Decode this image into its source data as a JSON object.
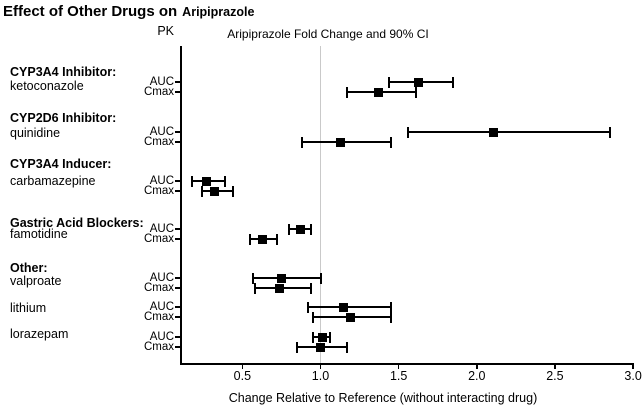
{
  "title_parts": {
    "prefix": "Effect of Other Drugs on",
    "drug": "Aripiprazole"
  },
  "column_headers": {
    "pk": "PK",
    "plot": "Aripiprazole Fold Change and 90% CI"
  },
  "chart_data": {
    "type": "forest",
    "title": "Aripiprazole Fold Change and 90% CI",
    "xlabel": "Change Relative to Reference (without interacting drug)",
    "xlim": [
      0.1,
      3.05
    ],
    "xticks": [
      "0.5",
      "1.0",
      "1.5",
      "2.0",
      "2.5",
      "3.0"
    ],
    "reference_line": 1.0,
    "ci_level": "90% CI",
    "groups": [
      {
        "category": "CYP3A4 Inhibitor:",
        "drugs": [
          {
            "name": "ketoconazole",
            "rows": [
              {
                "pk": "AUC",
                "value": 1.63,
                "lo": 1.44,
                "hi": 1.85
              },
              {
                "pk": "Cmax",
                "value": 1.37,
                "lo": 1.17,
                "hi": 1.61
              }
            ]
          }
        ]
      },
      {
        "category": "CYP2D6 Inhibitor:",
        "drugs": [
          {
            "name": "quinidine",
            "rows": [
              {
                "pk": "AUC",
                "value": 2.11,
                "lo": 1.56,
                "hi": 2.85
              },
              {
                "pk": "Cmax",
                "value": 1.13,
                "lo": 0.88,
                "hi": 1.45
              }
            ]
          }
        ]
      },
      {
        "category": "CYP3A4 Inducer:",
        "drugs": [
          {
            "name": "carbamazepine",
            "rows": [
              {
                "pk": "AUC",
                "value": 0.27,
                "lo": 0.18,
                "hi": 0.39
              },
              {
                "pk": "Cmax",
                "value": 0.32,
                "lo": 0.24,
                "hi": 0.44
              }
            ]
          }
        ]
      },
      {
        "category": "Gastric Acid Blockers:",
        "drugs": [
          {
            "name": "famotidine",
            "rows": [
              {
                "pk": "AUC",
                "value": 0.87,
                "lo": 0.8,
                "hi": 0.94
              },
              {
                "pk": "Cmax",
                "value": 0.63,
                "lo": 0.55,
                "hi": 0.72
              }
            ]
          }
        ]
      },
      {
        "category": "Other:",
        "drugs": [
          {
            "name": "valproate",
            "rows": [
              {
                "pk": "AUC",
                "value": 0.75,
                "lo": 0.57,
                "hi": 1.0
              },
              {
                "pk": "Cmax",
                "value": 0.74,
                "lo": 0.58,
                "hi": 0.94
              }
            ]
          },
          {
            "name": "lithium",
            "rows": [
              {
                "pk": "AUC",
                "value": 1.15,
                "lo": 0.92,
                "hi": 1.45
              },
              {
                "pk": "Cmax",
                "value": 1.19,
                "lo": 0.95,
                "hi": 1.45
              }
            ]
          },
          {
            "name": "lorazepam",
            "rows": [
              {
                "pk": "AUC",
                "value": 1.01,
                "lo": 0.95,
                "hi": 1.06
              },
              {
                "pk": "Cmax",
                "value": 1.0,
                "lo": 0.85,
                "hi": 1.17
              }
            ]
          }
        ]
      }
    ]
  }
}
